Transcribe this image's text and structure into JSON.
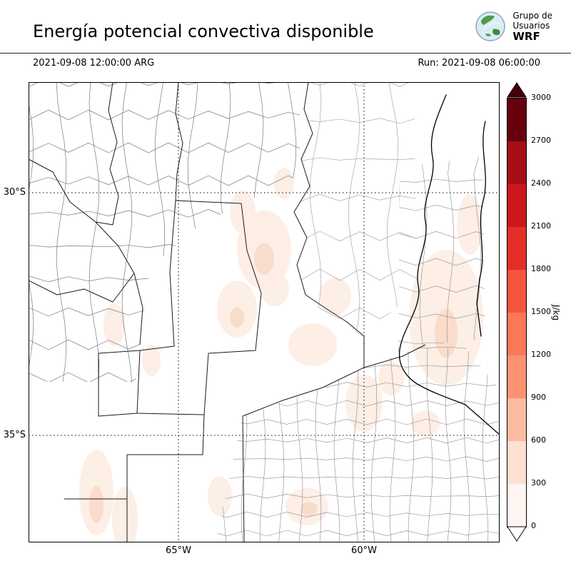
{
  "header": {
    "title": "Energía potencial convectiva disponible",
    "logo": {
      "line1": "Grupo de",
      "line2": "Usuarios",
      "line3": "WRF"
    }
  },
  "times": {
    "valid": "2021-09-08 12:00:00 ARG",
    "run": "Run: 2021-09-08 06:00:00"
  },
  "map": {
    "y_ticks": [
      "30°S",
      "35°S"
    ],
    "x_ticks": [
      "65°W",
      "60°W"
    ],
    "shade_light": "#fdece3",
    "shade_mid": "#f9d9c8"
  },
  "colorbar": {
    "unit": "J/kg",
    "ticks": [
      "3000",
      "2700",
      "2400",
      "2100",
      "1800",
      "1500",
      "1200",
      "900",
      "600",
      "300",
      "0"
    ],
    "over_color": "#450009",
    "under_color": "#ffffff",
    "segment_colors_top_to_bottom": [
      "#67000d",
      "#a50f15",
      "#cb181d",
      "#e32f27",
      "#f5543d",
      "#fb7757",
      "#fc9272",
      "#fcbba1",
      "#fee0d2",
      "#fff5f0"
    ]
  },
  "chart_data": {
    "type": "heatmap",
    "title": "Energía potencial convectiva disponible",
    "valid_time": "2021-09-08 12:00:00 ARG",
    "run_label": "Run: 2021-09-08 06:00:00",
    "unit": "J/kg",
    "colorbar_levels": [
      0,
      300,
      600,
      900,
      1200,
      1500,
      1800,
      2100,
      2400,
      2700,
      3000
    ],
    "colorbar_colors_low_to_high": [
      "#fff5f0",
      "#fee0d2",
      "#fcbba1",
      "#fc9272",
      "#fb7757",
      "#f5543d",
      "#e32f27",
      "#cb181d",
      "#a50f15",
      "#67000d"
    ],
    "colorbar_extend": "both",
    "x_tick_labels": [
      "65°W",
      "60°W"
    ],
    "y_tick_labels": [
      "30°S",
      "35°S"
    ],
    "grid": "dotted",
    "legend_position": "right",
    "observed_values_note": "Shaded regions on the map fall mostly in the 0–600 J/kg bins (light pink), over central/eastern Argentina"
  }
}
